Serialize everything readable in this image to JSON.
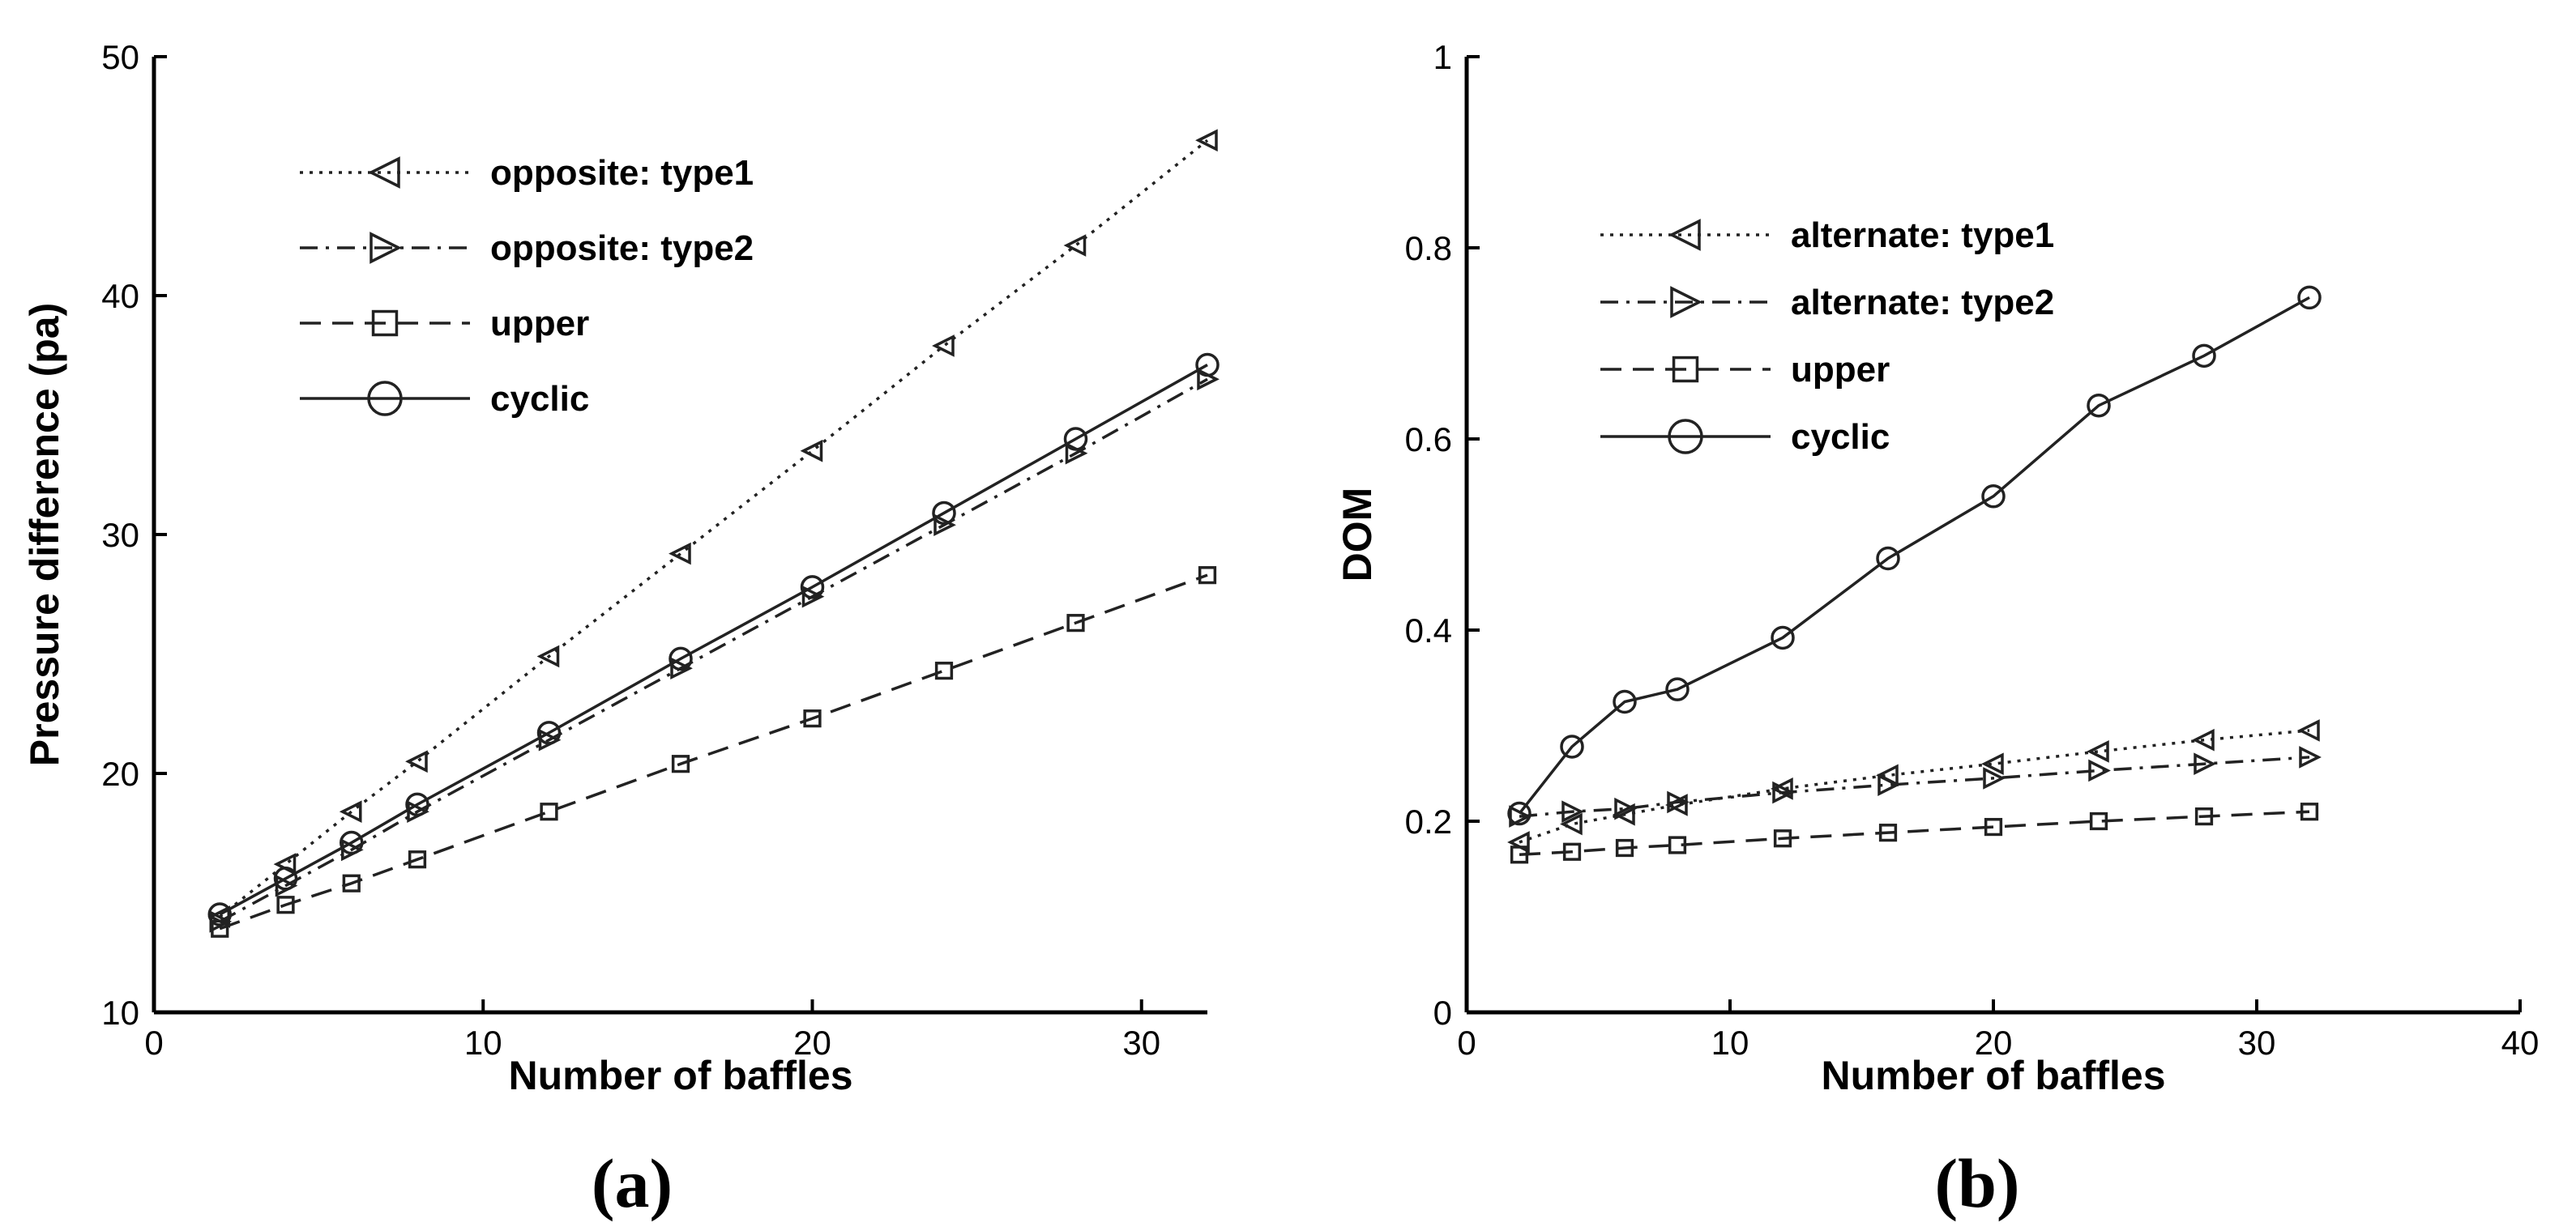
{
  "chart_data": [
    {
      "type": "line",
      "panel_label": "(a)",
      "title": "",
      "xlabel": "Number of baffles",
      "ylabel": "Pressure difference (pa)",
      "xlim": [
        0,
        32
      ],
      "ylim": [
        10,
        50
      ],
      "xticks": [
        0,
        10,
        20,
        30
      ],
      "yticks": [
        10,
        20,
        30,
        40,
        50
      ],
      "legend_position": "top-left",
      "grid": false,
      "x": [
        2,
        4,
        6,
        8,
        12,
        16,
        20,
        24,
        28,
        32
      ],
      "series": [
        {
          "name": "opposite: type1",
          "marker": "triangle-left",
          "dash": "dotted",
          "values": [
            14.0,
            16.2,
            18.4,
            20.5,
            24.9,
            29.2,
            33.5,
            37.9,
            42.1,
            46.5
          ]
        },
        {
          "name": "opposite: type2",
          "marker": "triangle-right",
          "dash": "dashdot",
          "values": [
            13.8,
            15.3,
            16.8,
            18.4,
            21.4,
            24.4,
            27.4,
            30.4,
            33.4,
            36.5
          ]
        },
        {
          "name": "upper",
          "marker": "square",
          "dash": "dashed",
          "values": [
            13.5,
            14.5,
            15.4,
            16.4,
            18.4,
            20.4,
            22.3,
            24.3,
            26.3,
            28.3
          ]
        },
        {
          "name": "cyclic",
          "marker": "circle",
          "dash": "solid",
          "values": [
            14.1,
            15.6,
            17.1,
            18.7,
            21.7,
            24.8,
            27.8,
            30.9,
            34.0,
            37.1
          ]
        }
      ]
    },
    {
      "type": "line",
      "panel_label": "(b)",
      "title": "",
      "xlabel": "Number of baffles",
      "ylabel": "DOM",
      "xlim": [
        0,
        40
      ],
      "ylim": [
        0,
        1
      ],
      "xticks": [
        0,
        10,
        20,
        30,
        40
      ],
      "yticks": [
        0,
        0.2,
        0.4,
        0.6,
        0.8,
        1
      ],
      "ytick_labels": [
        "0",
        "0.2",
        "0.4",
        "0.6",
        "0.8",
        "1"
      ],
      "legend_position": "top-left",
      "grid": false,
      "x": [
        2,
        4,
        6,
        8,
        12,
        16,
        20,
        24,
        28,
        32
      ],
      "series": [
        {
          "name": "alternate: type1",
          "marker": "triangle-left",
          "dash": "dotted",
          "values": [
            0.178,
            0.197,
            0.207,
            0.217,
            0.234,
            0.248,
            0.26,
            0.273,
            0.285,
            0.295
          ]
        },
        {
          "name": "alternate: type2",
          "marker": "triangle-right",
          "dash": "dashdot",
          "values": [
            0.205,
            0.21,
            0.213,
            0.22,
            0.23,
            0.238,
            0.245,
            0.253,
            0.26,
            0.267
          ]
        },
        {
          "name": "upper",
          "marker": "square",
          "dash": "dashed",
          "values": [
            0.165,
            0.168,
            0.172,
            0.175,
            0.182,
            0.188,
            0.194,
            0.2,
            0.205,
            0.21
          ]
        },
        {
          "name": "cyclic",
          "marker": "circle",
          "dash": "solid",
          "values": [
            0.208,
            0.278,
            0.325,
            0.338,
            0.392,
            0.475,
            0.54,
            0.635,
            0.687,
            0.748
          ]
        }
      ]
    }
  ]
}
